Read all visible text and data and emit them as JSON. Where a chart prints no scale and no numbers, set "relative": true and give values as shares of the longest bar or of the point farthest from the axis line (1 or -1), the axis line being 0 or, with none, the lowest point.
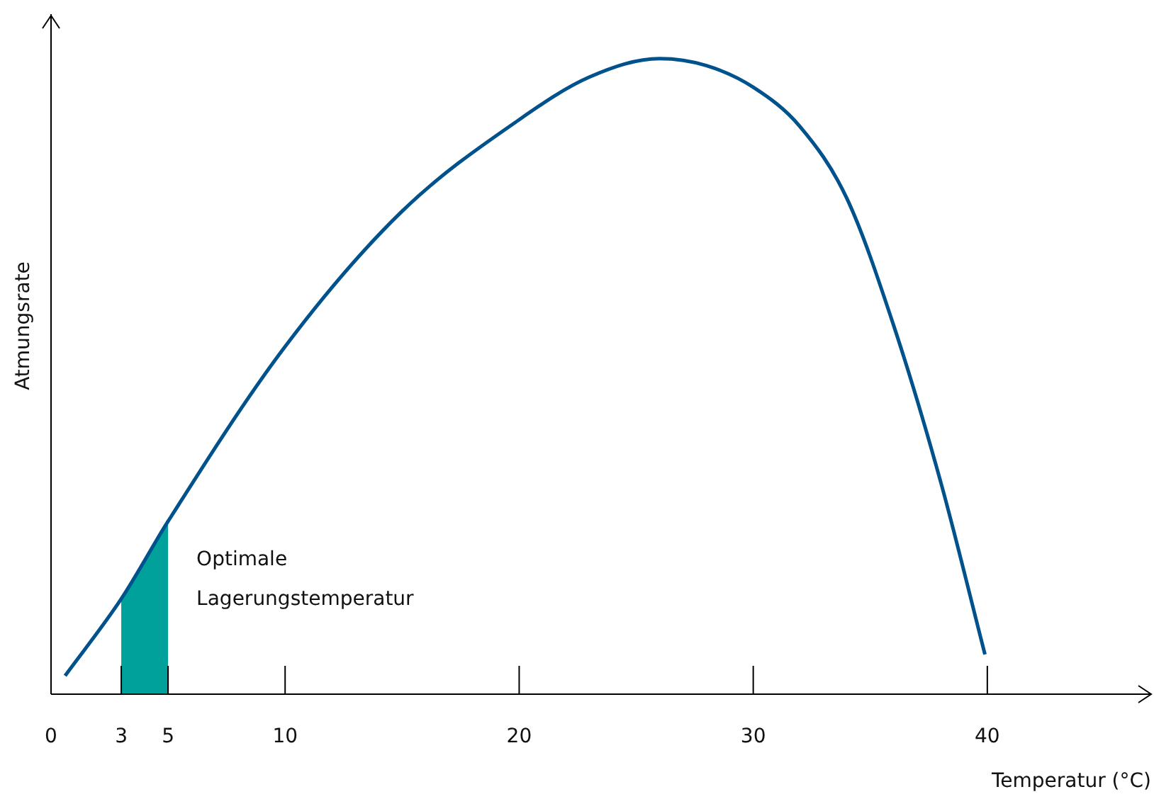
{
  "chart_data": {
    "type": "line",
    "xlabel": "Temperatur (°C)",
    "ylabel": "Atmungsrate",
    "relative": true,
    "xlim": [
      0,
      47
    ],
    "xticks": [
      0,
      3,
      5,
      10,
      20,
      30,
      40
    ],
    "grid": false,
    "legend": false,
    "marker": "none",
    "line_style": "solid",
    "series": [
      {
        "type": "area",
        "color": "#00a19a",
        "x": [
          3,
          5
        ],
        "values": [
          0.15,
          0.272
        ]
      },
      {
        "color": "#00528c",
        "x": [
          0.6,
          3,
          5,
          10,
          15,
          20,
          23,
          26,
          28,
          30,
          32,
          34,
          36,
          38,
          39.9
        ],
        "values": [
          0.029,
          0.15,
          0.272,
          0.547,
          0.76,
          0.904,
          0.971,
          1,
          0.989,
          0.955,
          0.893,
          0.78,
          0.58,
          0.335,
          0.0625
        ]
      }
    ],
    "annotations": [
      {
        "text": "Optimale Lagerungstemperatur",
        "x": 5,
        "y": 0.18
      }
    ]
  }
}
